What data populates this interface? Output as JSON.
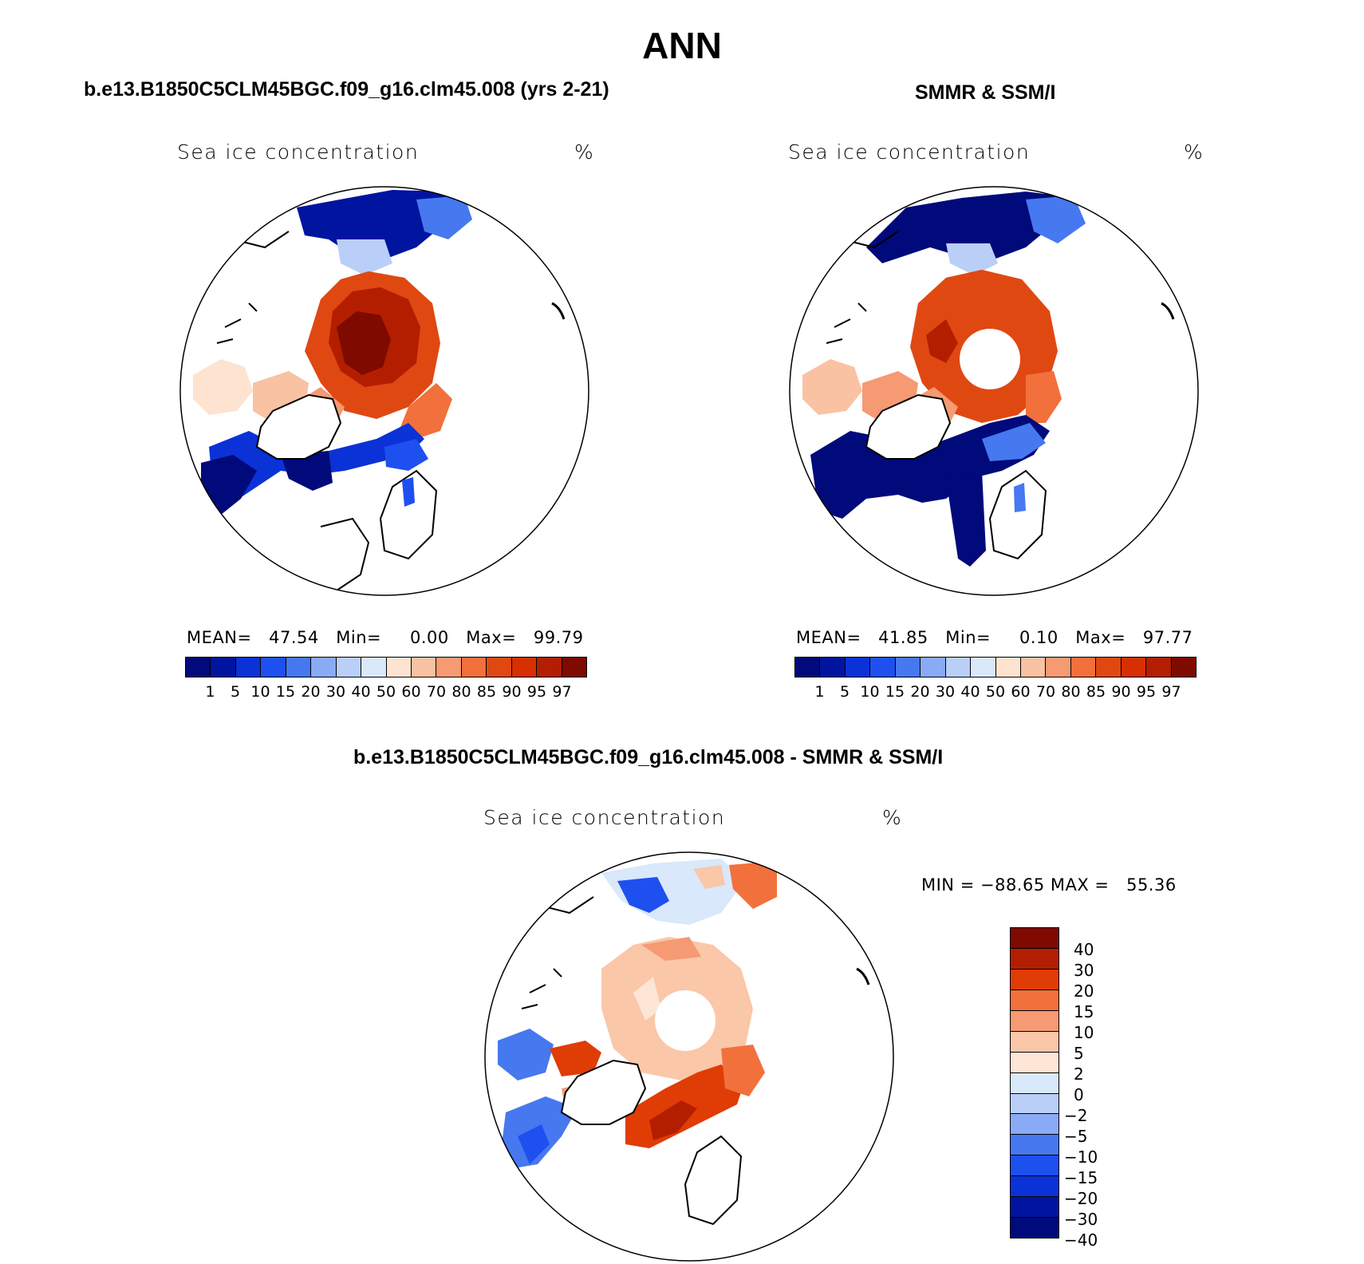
{
  "figure": {
    "title": "ANN"
  },
  "panel_model": {
    "subtitle": "b.e13.B1850C5CLM45BGC.f09_g16.clm45.008 (yrs 2-21)",
    "variable": "Sea ice concentration",
    "units": "%",
    "stats": {
      "mean_label": "MEAN=",
      "mean": "47.54",
      "min_label": "Min=",
      "min": "0.00",
      "max_label": "Max=",
      "max": "99.79"
    }
  },
  "panel_obs": {
    "subtitle": "SMMR & SSM/I",
    "variable": "Sea ice concentration",
    "units": "%",
    "stats": {
      "mean_label": "MEAN=",
      "mean": "41.85",
      "min_label": "Min=",
      "min": "0.10",
      "max_label": "Max=",
      "max": "97.77"
    }
  },
  "panel_diff": {
    "subtitle": "b.e13.B1850C5CLM45BGC.f09_g16.clm45.008 - SMMR & SSM/I",
    "variable": "Sea ice concentration",
    "units": "%",
    "stats": {
      "min_label": "MIN =",
      "min": "−88.65",
      "max_label": "MAX =",
      "max": "55.36"
    }
  },
  "colorbar_abs": {
    "ticks": [
      "1",
      "5",
      "10",
      "15",
      "20",
      "30",
      "40",
      "50",
      "60",
      "70",
      "80",
      "85",
      "90",
      "95",
      "97"
    ],
    "colors": [
      "#000a7a",
      "#0014a0",
      "#0a32d6",
      "#1e50f0",
      "#4678f0",
      "#8aaaf5",
      "#b9cff8",
      "#d9e8fa",
      "#fde3d0",
      "#f9c2a2",
      "#f59a72",
      "#f2703c",
      "#e04812",
      "#d63000",
      "#b41e00",
      "#7e0a00"
    ]
  },
  "colorbar_diff": {
    "ticks": [
      "40",
      "30",
      "20",
      "15",
      "10",
      "5",
      "2",
      "0",
      "−2",
      "−5",
      "−10",
      "−15",
      "−20",
      "−30",
      "−40"
    ],
    "colors": [
      "#7e0a00",
      "#b41e00",
      "#e03c05",
      "#f2703c",
      "#f59a72",
      "#fac7a8",
      "#fde6d6",
      "#d9e8fa",
      "#b9cff8",
      "#8aaaf5",
      "#4678f0",
      "#1e50f0",
      "#0a32d6",
      "#0014a0",
      "#000a7a"
    ]
  },
  "chart_data": [
    {
      "type": "heatmap",
      "title": "b.e13.B1850C5CLM45BGC.f09_g16.clm45.008 (yrs 2-21)",
      "variable": "Sea ice concentration",
      "units": "%",
      "projection": "north polar stereographic",
      "stats": {
        "mean": 47.54,
        "min": 0.0,
        "max": 99.79
      },
      "levels": [
        1,
        5,
        10,
        15,
        20,
        30,
        40,
        50,
        60,
        70,
        80,
        85,
        90,
        95,
        97
      ]
    },
    {
      "type": "heatmap",
      "title": "SMMR & SSM/I",
      "variable": "Sea ice concentration",
      "units": "%",
      "projection": "north polar stereographic",
      "stats": {
        "mean": 41.85,
        "min": 0.1,
        "max": 97.77
      },
      "levels": [
        1,
        5,
        10,
        15,
        20,
        30,
        40,
        50,
        60,
        70,
        80,
        85,
        90,
        95,
        97
      ]
    },
    {
      "type": "heatmap",
      "title": "b.e13.B1850C5CLM45BGC.f09_g16.clm45.008 - SMMR & SSM/I",
      "variable": "Sea ice concentration",
      "units": "%",
      "projection": "north polar stereographic",
      "stats": {
        "min": -88.65,
        "max": 55.36
      },
      "levels": [
        -40,
        -30,
        -20,
        -15,
        -10,
        -5,
        -2,
        0,
        2,
        5,
        10,
        15,
        20,
        30,
        40
      ]
    }
  ]
}
